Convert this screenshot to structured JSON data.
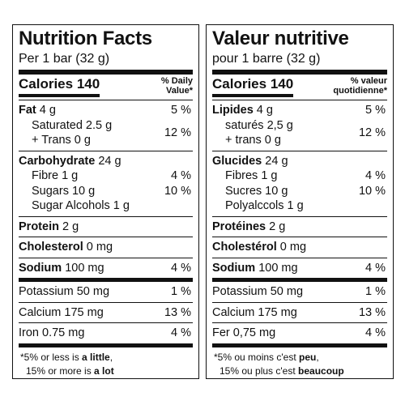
{
  "panels": [
    {
      "title": "Nutrition Facts",
      "serving": "Per 1 bar (32 g)",
      "calories": {
        "label": "Calories",
        "value": "140"
      },
      "dv_header": [
        "% Daily",
        "Value*"
      ],
      "sections": [
        [
          {
            "bold": "Fat",
            "text": "4 g",
            "dv": "5 %"
          },
          {
            "sub": [
              "Saturated 2.5 g",
              "+ Trans 0 g"
            ],
            "dv": "12 %"
          }
        ],
        [
          {
            "bold": "Carbohydrate",
            "text": "24 g"
          },
          {
            "sub": [
              "Fibre 1 g"
            ],
            "dv": "4 %"
          },
          {
            "sub": [
              "Sugars 10 g"
            ],
            "dv": "10 %"
          },
          {
            "sub": [
              "Sugar Alcohols 1 g"
            ]
          }
        ],
        [
          {
            "bold": "Protein",
            "text": "2 g"
          }
        ],
        [
          {
            "bold": "Cholesterol",
            "text": "0 mg"
          }
        ],
        [
          {
            "bold": "Sodium",
            "text": "100 mg",
            "dv": "4 %"
          }
        ],
        [
          {
            "text": "Potassium 50 mg",
            "dv": "1 %"
          }
        ],
        [
          {
            "text": "Calcium 175 mg",
            "dv": "13 %"
          }
        ],
        [
          {
            "text": "Iron 0.75 mg",
            "dv": "4 %"
          }
        ]
      ],
      "footnote": [
        [
          {
            "text": "*5% or less is "
          },
          {
            "bold": "a little"
          },
          {
            "text": ","
          }
        ],
        [
          {
            "text": "15% or more is "
          },
          {
            "bold": "a lot"
          }
        ]
      ]
    },
    {
      "title": "Valeur nutritive",
      "serving": "pour 1 barre (32 g)",
      "calories": {
        "label": "Calories",
        "value": "140"
      },
      "dv_header": [
        "% valeur",
        "quotidienne*"
      ],
      "sections": [
        [
          {
            "bold": "Lipides",
            "text": "4 g",
            "dv": "5 %"
          },
          {
            "sub": [
              "saturés 2,5 g",
              "+ trans 0 g"
            ],
            "dv": "12 %"
          }
        ],
        [
          {
            "bold": "Glucides",
            "text": "24 g"
          },
          {
            "sub": [
              "Fibres 1 g"
            ],
            "dv": "4 %"
          },
          {
            "sub": [
              "Sucres 10 g"
            ],
            "dv": "10 %"
          },
          {
            "sub": [
              "Polyalccols 1 g"
            ]
          }
        ],
        [
          {
            "bold": "Protéines",
            "text": "2 g"
          }
        ],
        [
          {
            "bold": "Cholestérol",
            "text": "0 mg"
          }
        ],
        [
          {
            "bold": "Sodium",
            "text": "100 mg",
            "dv": "4 %"
          }
        ],
        [
          {
            "text": "Potassium 50 mg",
            "dv": "1 %"
          }
        ],
        [
          {
            "text": "Calcium 175 mg",
            "dv": "13 %"
          }
        ],
        [
          {
            "text": "Fer 0,75 mg",
            "dv": "4 %"
          }
        ]
      ],
      "footnote": [
        [
          {
            "text": "*5% ou moins c'est "
          },
          {
            "bold": "peu"
          },
          {
            "text": ","
          }
        ],
        [
          {
            "text": "15% ou plus c'est "
          },
          {
            "bold": "beaucoup"
          }
        ]
      ]
    }
  ]
}
